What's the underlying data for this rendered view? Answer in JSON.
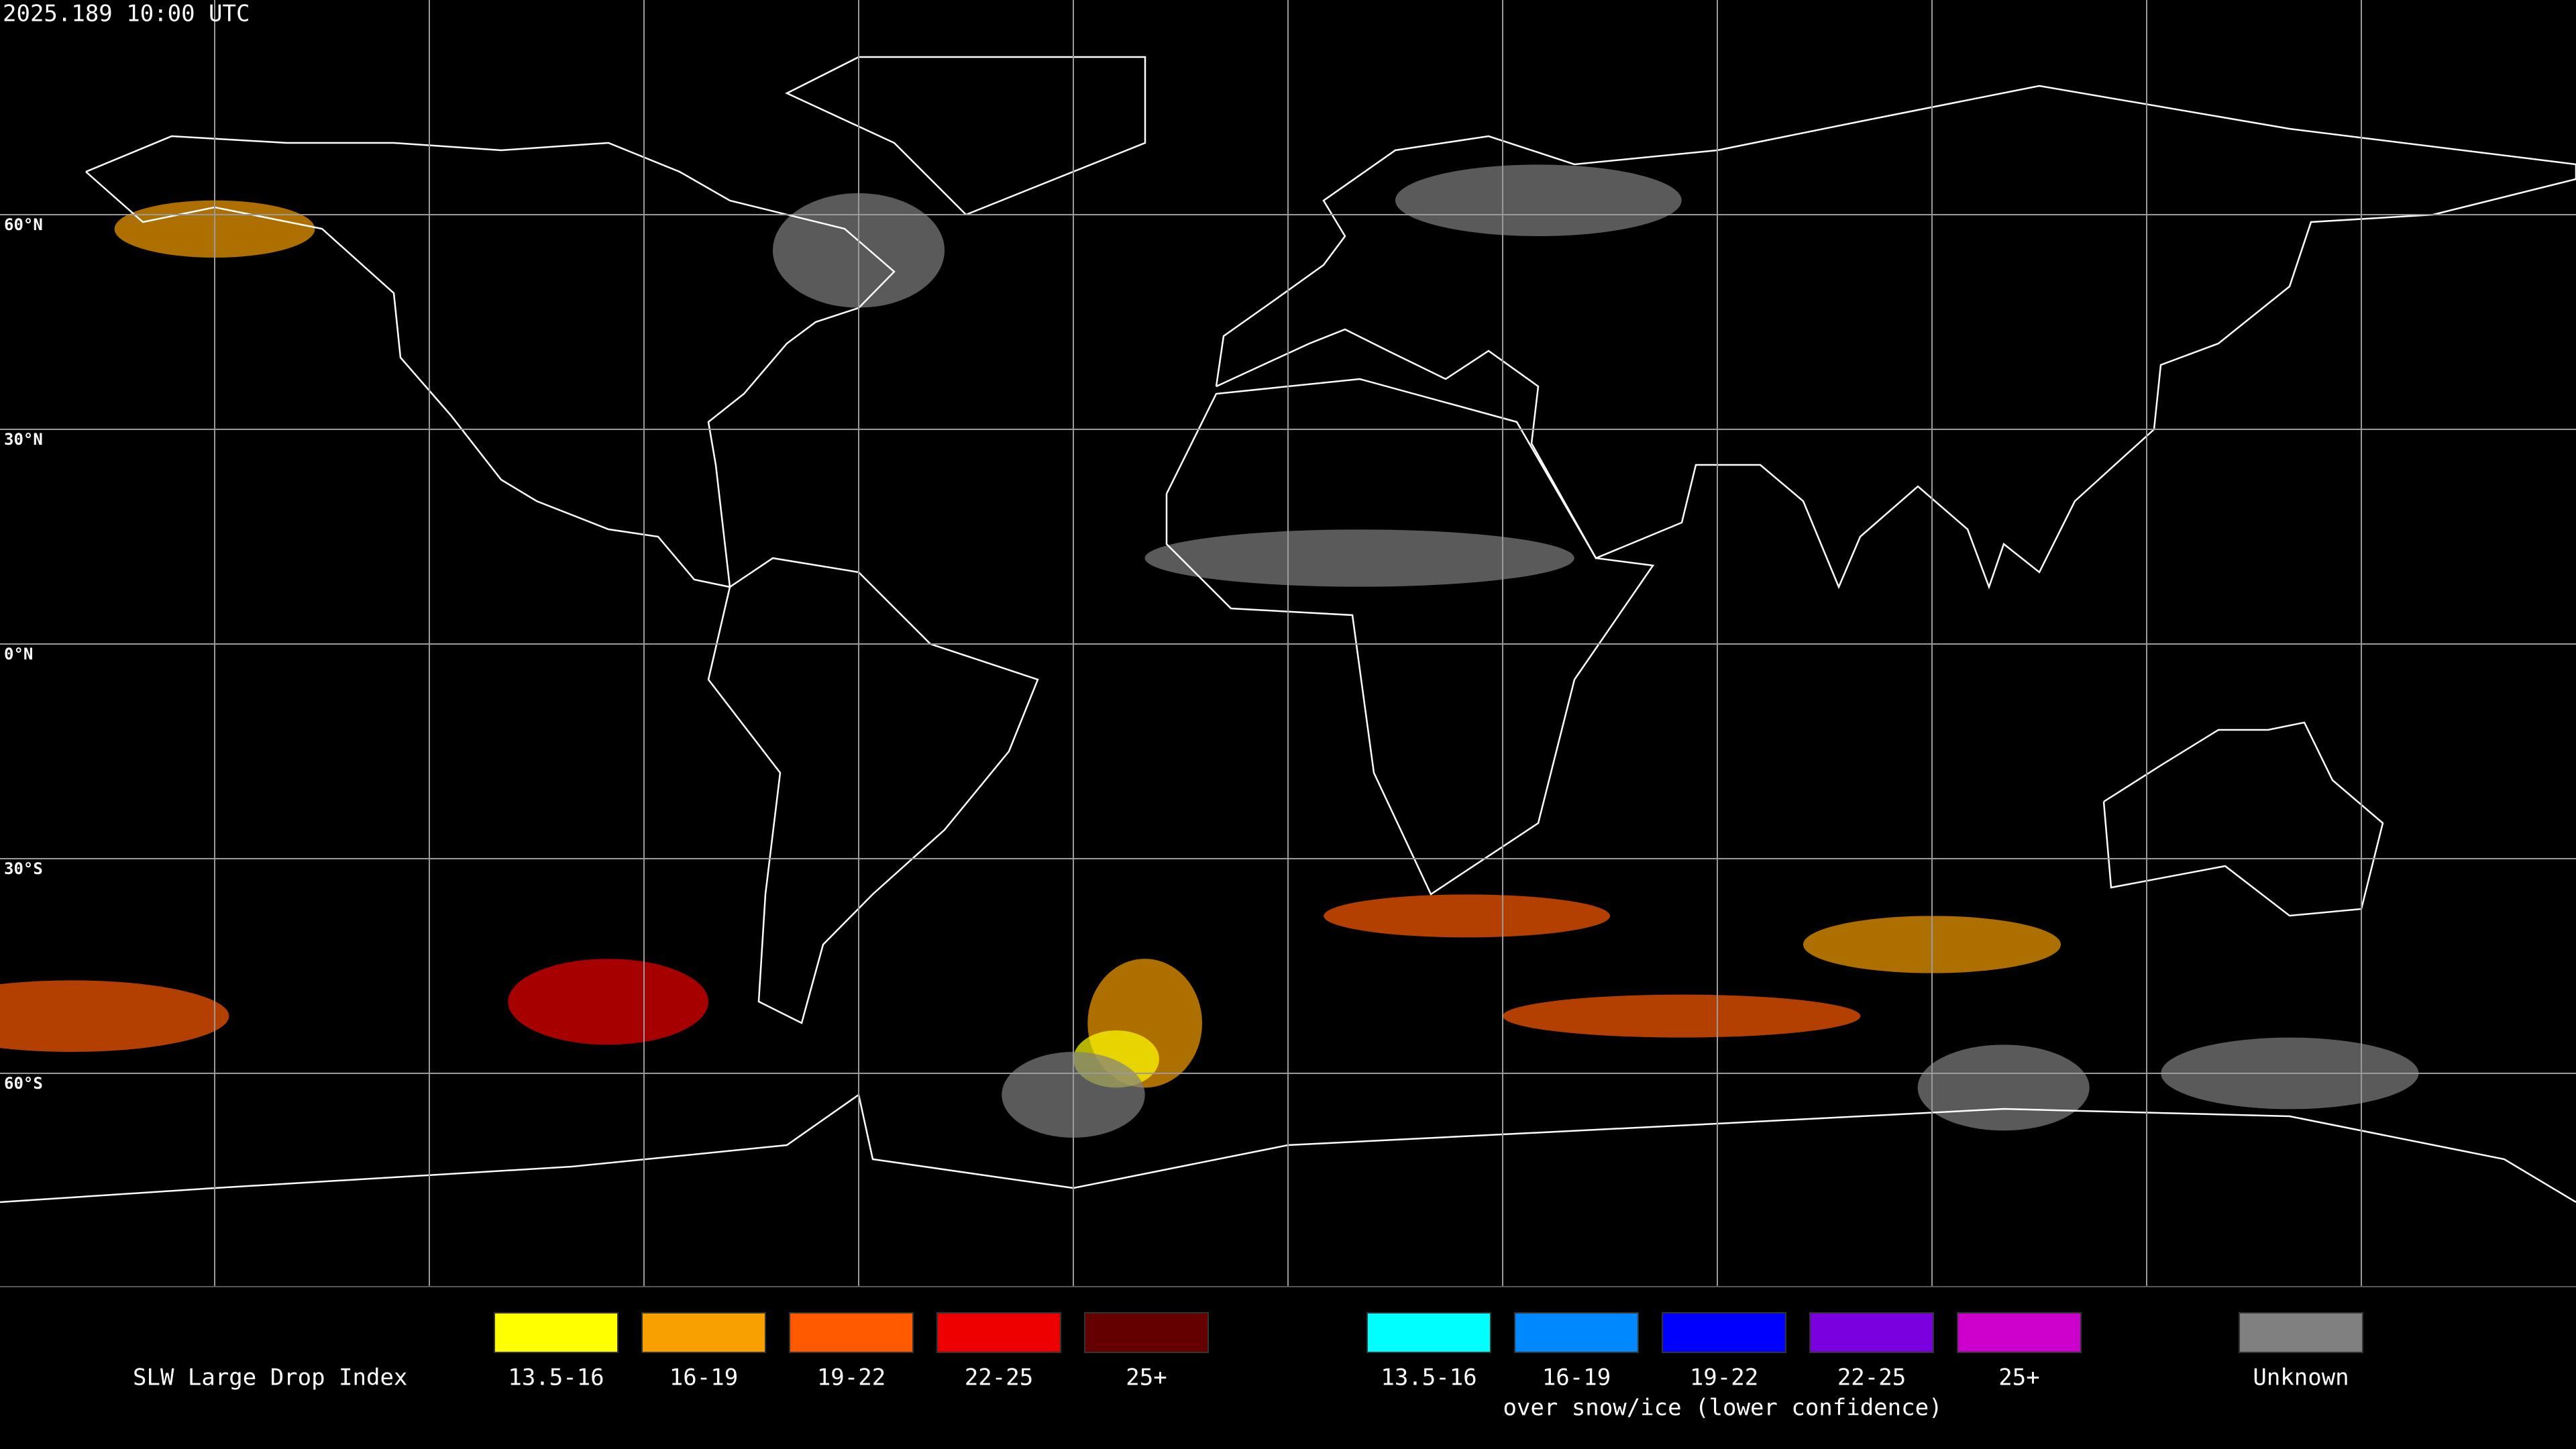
{
  "header": {
    "timestamp": "2025.189 10:00 UTC"
  },
  "map": {
    "latitude_labels": [
      "60°N",
      "30°N",
      "0°N",
      "30°S",
      "60°S"
    ]
  },
  "legend": {
    "title": "SLW Large Drop Index",
    "liquid": [
      {
        "label": "13.5-16",
        "color": "#ffff00"
      },
      {
        "label": "16-19",
        "color": "#f7a000"
      },
      {
        "label": "19-22",
        "color": "#ff5a00"
      },
      {
        "label": "22-25",
        "color": "#ee0000"
      },
      {
        "label": "25+",
        "color": "#650000"
      }
    ],
    "snow_ice": [
      {
        "label": "13.5-16",
        "color": "#00ffff"
      },
      {
        "label": "16-19",
        "color": "#0088ff"
      },
      {
        "label": "19-22",
        "color": "#0000ff"
      },
      {
        "label": "22-25",
        "color": "#7a00e0"
      },
      {
        "label": "25+",
        "color": "#cc00cc"
      }
    ],
    "snow_ice_caption": "over snow/ice (lower confidence)",
    "unknown": {
      "label": "Unknown",
      "color": "#808080"
    }
  }
}
